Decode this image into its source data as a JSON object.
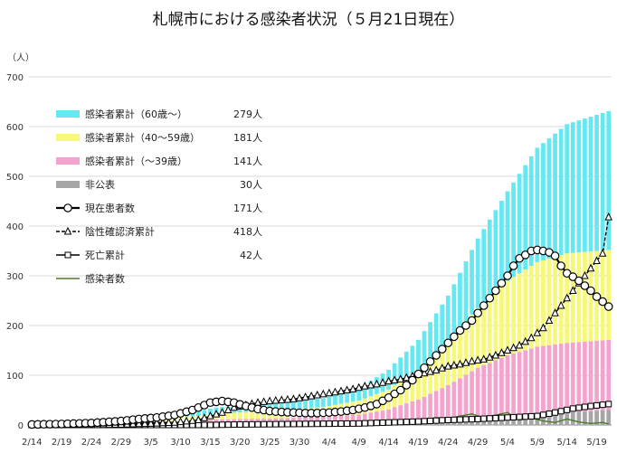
{
  "chart_data": {
    "type": "bar",
    "title": "札幌市における感染者状況（５月21日現在）",
    "ylabel": "（人）",
    "ylim": [
      0,
      700
    ],
    "yticks": [
      0,
      100,
      200,
      300,
      400,
      500,
      600,
      700
    ],
    "xtick_labels": [
      "2/14",
      "2/19",
      "2/24",
      "2/29",
      "3/5",
      "3/10",
      "3/15",
      "3/20",
      "3/25",
      "3/30",
      "4/4",
      "4/9",
      "4/14",
      "4/19",
      "4/24",
      "4/29",
      "5/4",
      "5/9",
      "5/14",
      "5/19"
    ],
    "grid": true,
    "legend": [
      {
        "label": "感染者累計（60歳～）",
        "value": "279人",
        "color": "#66e8f2",
        "kind": "bar"
      },
      {
        "label": "感染者累計（40～59歳）",
        "value": "181人",
        "color": "#f7f77a",
        "kind": "bar"
      },
      {
        "label": "感染者累計（～39歳）",
        "value": "141人",
        "color": "#f4a3cf",
        "kind": "bar"
      },
      {
        "label": "非公表",
        "value": "30人",
        "color": "#a6a6a6",
        "kind": "bar"
      },
      {
        "label": "現在患者数",
        "value": "171人",
        "color": "#000000",
        "kind": "line-circle"
      },
      {
        "label": "陰性確認済累計",
        "value": "418人",
        "color": "#000000",
        "kind": "dash-triangle"
      },
      {
        "label": "死亡累計",
        "value": "42人",
        "color": "#000000",
        "kind": "line-square"
      },
      {
        "label": "感染者数",
        "value": "",
        "color": "#4e7a2e",
        "kind": "line"
      }
    ],
    "start_date": "2020-02-14",
    "end_date": "2020-05-21",
    "bars": {
      "unknown": [
        [
          0,
          0
        ],
        [
          25,
          0
        ],
        [
          26,
          1
        ],
        [
          60,
          1
        ],
        [
          61,
          3
        ],
        [
          70,
          10
        ],
        [
          80,
          20
        ],
        [
          90,
          25
        ],
        [
          97,
          30
        ]
      ],
      "age_0_39": [
        [
          0,
          0
        ],
        [
          9,
          0
        ],
        [
          15,
          3
        ],
        [
          20,
          6
        ],
        [
          28,
          8
        ],
        [
          31,
          10
        ],
        [
          40,
          12
        ],
        [
          49,
          15
        ],
        [
          55,
          20
        ],
        [
          60,
          30
        ],
        [
          65,
          45
        ],
        [
          70,
          70
        ],
        [
          75,
          100
        ],
        [
          80,
          120
        ],
        [
          85,
          135
        ],
        [
          90,
          140
        ],
        [
          97,
          141
        ]
      ],
      "age_40_59": [
        [
          0,
          0
        ],
        [
          9,
          0
        ],
        [
          12,
          2
        ],
        [
          15,
          4
        ],
        [
          20,
          6
        ],
        [
          28,
          9
        ],
        [
          31,
          12
        ],
        [
          40,
          15
        ],
        [
          49,
          20
        ],
        [
          55,
          28
        ],
        [
          60,
          40
        ],
        [
          65,
          60
        ],
        [
          70,
          90
        ],
        [
          75,
          120
        ],
        [
          80,
          150
        ],
        [
          85,
          170
        ],
        [
          90,
          180
        ],
        [
          97,
          181
        ]
      ],
      "age_60_plus": [
        [
          0,
          0
        ],
        [
          9,
          0
        ],
        [
          12,
          1
        ],
        [
          16,
          3
        ],
        [
          22,
          6
        ],
        [
          28,
          10
        ],
        [
          31,
          12
        ],
        [
          40,
          15
        ],
        [
          49,
          18
        ],
        [
          55,
          25
        ],
        [
          60,
          40
        ],
        [
          65,
          60
        ],
        [
          70,
          90
        ],
        [
          75,
          140
        ],
        [
          80,
          180
        ],
        [
          85,
          230
        ],
        [
          90,
          260
        ],
        [
          97,
          279
        ]
      ]
    },
    "series": [
      {
        "name": "現在患者数",
        "points": [
          [
            0,
            1
          ],
          [
            5,
            2
          ],
          [
            10,
            4
          ],
          [
            15,
            8
          ],
          [
            18,
            12
          ],
          [
            21,
            15
          ],
          [
            24,
            20
          ],
          [
            27,
            30
          ],
          [
            29,
            40
          ],
          [
            30,
            45
          ],
          [
            32,
            48
          ],
          [
            34,
            45
          ],
          [
            36,
            38
          ],
          [
            38,
            32
          ],
          [
            40,
            28
          ],
          [
            42,
            26
          ],
          [
            44,
            25
          ],
          [
            46,
            24
          ],
          [
            48,
            24
          ],
          [
            50,
            25
          ],
          [
            52,
            27
          ],
          [
            54,
            30
          ],
          [
            56,
            35
          ],
          [
            58,
            42
          ],
          [
            60,
            55
          ],
          [
            62,
            70
          ],
          [
            64,
            90
          ],
          [
            66,
            115
          ],
          [
            68,
            140
          ],
          [
            70,
            165
          ],
          [
            72,
            190
          ],
          [
            74,
            210
          ],
          [
            76,
            240
          ],
          [
            78,
            270
          ],
          [
            80,
            300
          ],
          [
            81,
            320
          ],
          [
            82,
            335
          ],
          [
            83,
            342
          ],
          [
            84,
            350
          ],
          [
            85,
            352
          ],
          [
            86,
            350
          ],
          [
            87,
            347
          ],
          [
            88,
            340
          ],
          [
            89,
            320
          ],
          [
            90,
            305
          ],
          [
            91,
            298
          ],
          [
            92,
            290
          ],
          [
            93,
            280
          ],
          [
            94,
            270
          ],
          [
            95,
            258
          ],
          [
            96,
            248
          ],
          [
            97,
            238
          ],
          [
            98,
            230
          ],
          [
            99,
            222
          ],
          [
            100,
            210
          ],
          [
            101,
            200
          ],
          [
            102,
            192
          ],
          [
            103,
            185
          ],
          [
            104,
            178
          ],
          [
            97,
            171
          ]
        ]
      },
      {
        "name": "陰性確認済累計",
        "points": [
          [
            0,
            0
          ],
          [
            10,
            0
          ],
          [
            15,
            1
          ],
          [
            20,
            3
          ],
          [
            24,
            5
          ],
          [
            28,
            10
          ],
          [
            30,
            18
          ],
          [
            32,
            25
          ],
          [
            34,
            35
          ],
          [
            36,
            40
          ],
          [
            38,
            45
          ],
          [
            40,
            48
          ],
          [
            42,
            50
          ],
          [
            44,
            52
          ],
          [
            46,
            56
          ],
          [
            48,
            60
          ],
          [
            50,
            64
          ],
          [
            52,
            68
          ],
          [
            54,
            72
          ],
          [
            56,
            78
          ],
          [
            58,
            82
          ],
          [
            60,
            88
          ],
          [
            62,
            92
          ],
          [
            64,
            98
          ],
          [
            66,
            104
          ],
          [
            68,
            110
          ],
          [
            70,
            118
          ],
          [
            72,
            122
          ],
          [
            74,
            128
          ],
          [
            76,
            132
          ],
          [
            78,
            140
          ],
          [
            80,
            150
          ],
          [
            82,
            160
          ],
          [
            84,
            175
          ],
          [
            86,
            195
          ],
          [
            88,
            225
          ],
          [
            90,
            255
          ],
          [
            92,
            285
          ],
          [
            94,
            315
          ],
          [
            96,
            345
          ],
          [
            97,
            418
          ]
        ]
      },
      {
        "name": "死亡累計",
        "points": [
          [
            0,
            0
          ],
          [
            30,
            0
          ],
          [
            35,
            1
          ],
          [
            45,
            2
          ],
          [
            55,
            3
          ],
          [
            60,
            5
          ],
          [
            65,
            7
          ],
          [
            70,
            10
          ],
          [
            75,
            12
          ],
          [
            80,
            15
          ],
          [
            85,
            18
          ],
          [
            88,
            25
          ],
          [
            91,
            33
          ],
          [
            94,
            38
          ],
          [
            97,
            42
          ]
        ]
      },
      {
        "name": "感染者数",
        "points": [
          [
            0,
            0
          ],
          [
            10,
            1
          ],
          [
            20,
            2
          ],
          [
            28,
            3
          ],
          [
            30,
            5
          ],
          [
            32,
            2
          ],
          [
            40,
            1
          ],
          [
            50,
            2
          ],
          [
            55,
            3
          ],
          [
            60,
            5
          ],
          [
            62,
            8
          ],
          [
            64,
            3
          ],
          [
            66,
            10
          ],
          [
            68,
            15
          ],
          [
            70,
            12
          ],
          [
            72,
            18
          ],
          [
            74,
            22
          ],
          [
            76,
            15
          ],
          [
            78,
            20
          ],
          [
            80,
            25
          ],
          [
            82,
            10
          ],
          [
            84,
            14
          ],
          [
            86,
            8
          ],
          [
            88,
            5
          ],
          [
            90,
            12
          ],
          [
            92,
            6
          ],
          [
            94,
            3
          ],
          [
            96,
            5
          ],
          [
            97,
            2
          ]
        ]
      }
    ]
  }
}
